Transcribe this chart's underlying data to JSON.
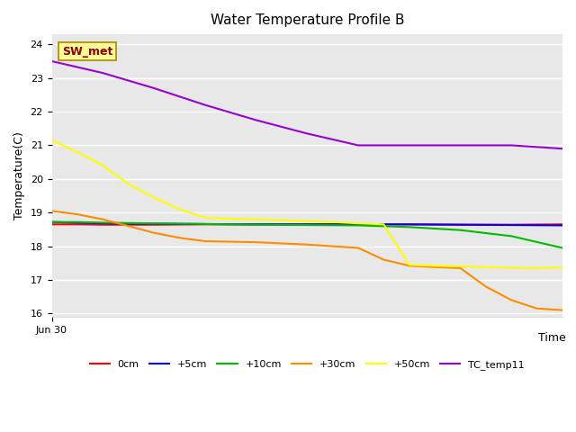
{
  "title": "Water Temperature Profile B",
  "xlabel": "Time",
  "ylabel": "Temperature(C)",
  "ylim": [
    15.9,
    24.3
  ],
  "yticks": [
    16.0,
    17.0,
    18.0,
    19.0,
    20.0,
    21.0,
    22.0,
    23.0,
    24.0
  ],
  "x_start_label": "Jun 30",
  "annotation_text": "SW_met",
  "annotation_box_color": "#FFFF99",
  "annotation_text_color": "#8B0000",
  "plot_bg_color": "#E8E8E8",
  "fig_bg_color": "#FFFFFF",
  "series": {
    "0cm": {
      "color": "#FF0000",
      "x": [
        0,
        0.05,
        0.1,
        0.15,
        0.2,
        0.3,
        0.4,
        0.5,
        0.6,
        0.7,
        0.8,
        0.9,
        1.0
      ],
      "y": [
        18.65,
        18.65,
        18.64,
        18.64,
        18.64,
        18.65,
        18.65,
        18.65,
        18.65,
        18.65,
        18.64,
        18.64,
        18.65
      ]
    },
    "+5cm": {
      "color": "#0000FF",
      "x": [
        0,
        0.05,
        0.1,
        0.15,
        0.2,
        0.3,
        0.4,
        0.5,
        0.6,
        0.7,
        0.8,
        0.9,
        1.0
      ],
      "y": [
        18.72,
        18.7,
        18.68,
        18.67,
        18.67,
        18.66,
        18.65,
        18.65,
        18.65,
        18.65,
        18.64,
        18.63,
        18.62
      ]
    },
    "+10cm": {
      "color": "#00BB00",
      "x": [
        0,
        0.05,
        0.1,
        0.15,
        0.2,
        0.3,
        0.4,
        0.5,
        0.6,
        0.7,
        0.8,
        0.9,
        1.0
      ],
      "y": [
        18.72,
        18.72,
        18.7,
        18.69,
        18.68,
        18.66,
        18.64,
        18.63,
        18.62,
        18.57,
        18.48,
        18.3,
        17.95
      ]
    },
    "+30cm": {
      "color": "#FF8C00",
      "x": [
        0,
        0.05,
        0.1,
        0.15,
        0.2,
        0.25,
        0.3,
        0.4,
        0.5,
        0.6,
        0.65,
        0.7,
        0.75,
        0.8,
        0.85,
        0.9,
        0.95,
        1.0
      ],
      "y": [
        19.05,
        18.95,
        18.8,
        18.6,
        18.4,
        18.25,
        18.15,
        18.12,
        18.05,
        17.95,
        17.6,
        17.42,
        17.38,
        17.35,
        16.8,
        16.4,
        16.15,
        16.1
      ]
    },
    "+50cm": {
      "color": "#FFFF00",
      "x": [
        0,
        0.05,
        0.1,
        0.15,
        0.2,
        0.25,
        0.3,
        0.35,
        0.4,
        0.45,
        0.5,
        0.55,
        0.6,
        0.65,
        0.7,
        0.75,
        0.8,
        0.85,
        0.9,
        0.95,
        1.0
      ],
      "y": [
        21.15,
        20.8,
        20.4,
        19.85,
        19.45,
        19.1,
        18.85,
        18.82,
        18.8,
        18.78,
        18.75,
        18.72,
        18.68,
        18.65,
        17.45,
        17.42,
        17.4,
        17.38,
        17.36,
        17.35,
        17.37
      ]
    },
    "TC_temp11": {
      "color": "#9900CC",
      "x": [
        0,
        0.1,
        0.2,
        0.3,
        0.4,
        0.5,
        0.6,
        0.7,
        0.8,
        0.9,
        1.0
      ],
      "y": [
        23.5,
        23.15,
        22.7,
        22.2,
        21.75,
        21.35,
        21.0,
        21.0,
        21.0,
        21.0,
        20.9
      ]
    }
  },
  "legend_order": [
    "0cm",
    "+5cm",
    "+10cm",
    "+30cm",
    "+50cm",
    "TC_temp11"
  ],
  "line_width": 1.5
}
